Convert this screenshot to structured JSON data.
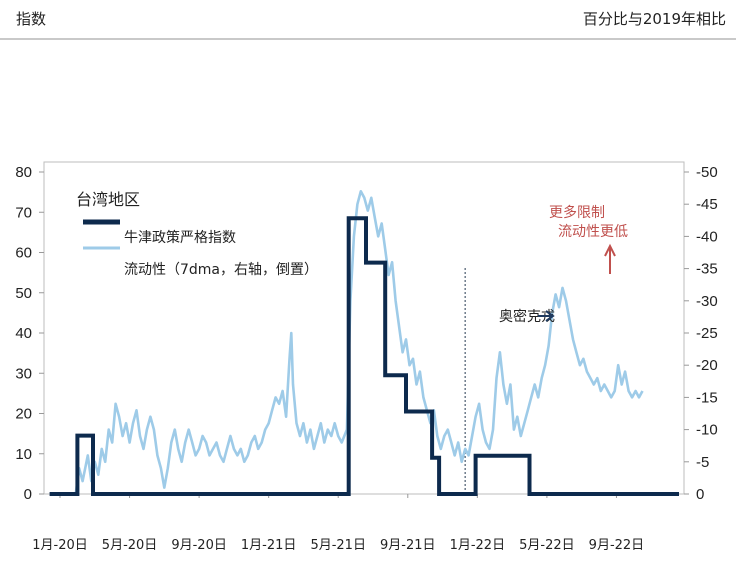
{
  "header": {
    "left_label": "指数",
    "right_label": "百分比与2019年相比"
  },
  "chart_data": {
    "type": "line",
    "title": "台湾地区",
    "x_ticks": [
      "1月-20日",
      "5月-20日",
      "9月-20日",
      "1月-21日",
      "5月-21日",
      "9月-21日",
      "1月-22日",
      "5月-22日",
      "9月-22日"
    ],
    "y_left": {
      "ticks": [
        0,
        10,
        20,
        30,
        40,
        50,
        60,
        70,
        80
      ],
      "ylim": [
        0,
        80
      ]
    },
    "y_right": {
      "ticks": [
        0,
        -5,
        -10,
        -15,
        -20,
        -25,
        -30,
        -35,
        -40,
        -45,
        -50
      ],
      "ylim": [
        0,
        -50
      ],
      "inverted": true
    },
    "x_range": [
      0,
      36
    ],
    "series": [
      {
        "name": "牛津政策严格指数",
        "axis": "left",
        "color": "#0d2a4d",
        "step": true,
        "points": [
          [
            -0.6,
            0
          ],
          [
            1.0,
            0
          ],
          [
            1.0,
            14.5
          ],
          [
            1.9,
            14.5
          ],
          [
            1.9,
            0
          ],
          [
            16.6,
            0
          ],
          [
            16.6,
            68.5
          ],
          [
            17.6,
            68.5
          ],
          [
            17.6,
            57.5
          ],
          [
            18.7,
            57.5
          ],
          [
            18.7,
            29.5
          ],
          [
            19.9,
            29.5
          ],
          [
            19.9,
            20.5
          ],
          [
            21.4,
            20.5
          ],
          [
            21.4,
            9
          ],
          [
            21.8,
            9
          ],
          [
            21.8,
            0
          ],
          [
            23.9,
            0
          ],
          [
            23.9,
            9.5
          ],
          [
            27.0,
            9.5
          ],
          [
            27.0,
            0
          ],
          [
            35.6,
            0
          ]
        ]
      },
      {
        "name": "流动性（7dma，右轴，倒置）",
        "axis": "right",
        "color": "#9ecbe8",
        "points": [
          [
            -0.4,
            0
          ],
          [
            0.9,
            0
          ],
          [
            1.1,
            -4
          ],
          [
            1.3,
            -2
          ],
          [
            1.6,
            -6
          ],
          [
            1.8,
            -2
          ],
          [
            2.0,
            -5
          ],
          [
            2.2,
            -3
          ],
          [
            2.4,
            -7
          ],
          [
            2.6,
            -5
          ],
          [
            2.8,
            -10
          ],
          [
            3.0,
            -8
          ],
          [
            3.2,
            -14
          ],
          [
            3.4,
            -12
          ],
          [
            3.6,
            -9
          ],
          [
            3.8,
            -11
          ],
          [
            4.0,
            -8
          ],
          [
            4.2,
            -11
          ],
          [
            4.4,
            -13
          ],
          [
            4.6,
            -9
          ],
          [
            4.8,
            -7
          ],
          [
            5.0,
            -10
          ],
          [
            5.2,
            -12
          ],
          [
            5.4,
            -10
          ],
          [
            5.6,
            -6
          ],
          [
            5.8,
            -4
          ],
          [
            6.0,
            -1
          ],
          [
            6.2,
            -4
          ],
          [
            6.4,
            -8
          ],
          [
            6.6,
            -10
          ],
          [
            6.8,
            -7
          ],
          [
            7.0,
            -5
          ],
          [
            7.2,
            -8
          ],
          [
            7.4,
            -10
          ],
          [
            7.6,
            -8
          ],
          [
            7.8,
            -6
          ],
          [
            8.0,
            -7
          ],
          [
            8.2,
            -9
          ],
          [
            8.4,
            -8
          ],
          [
            8.6,
            -6
          ],
          [
            8.8,
            -7
          ],
          [
            9.0,
            -8
          ],
          [
            9.2,
            -6
          ],
          [
            9.4,
            -5
          ],
          [
            9.6,
            -7
          ],
          [
            9.8,
            -9
          ],
          [
            10.0,
            -7
          ],
          [
            10.2,
            -6
          ],
          [
            10.4,
            -7
          ],
          [
            10.6,
            -5
          ],
          [
            10.8,
            -6
          ],
          [
            11.0,
            -8
          ],
          [
            11.2,
            -9
          ],
          [
            11.4,
            -7
          ],
          [
            11.6,
            -8
          ],
          [
            11.8,
            -10
          ],
          [
            12.0,
            -11
          ],
          [
            12.2,
            -13
          ],
          [
            12.4,
            -15
          ],
          [
            12.6,
            -14
          ],
          [
            12.8,
            -16
          ],
          [
            13.0,
            -12
          ],
          [
            13.2,
            -21
          ],
          [
            13.3,
            -25
          ],
          [
            13.4,
            -17
          ],
          [
            13.6,
            -11
          ],
          [
            13.8,
            -9
          ],
          [
            14.0,
            -11
          ],
          [
            14.2,
            -8
          ],
          [
            14.4,
            -10
          ],
          [
            14.6,
            -7
          ],
          [
            14.8,
            -9
          ],
          [
            15.0,
            -11
          ],
          [
            15.2,
            -8
          ],
          [
            15.4,
            -10
          ],
          [
            15.6,
            -9
          ],
          [
            15.8,
            -11
          ],
          [
            16.0,
            -9
          ],
          [
            16.2,
            -8
          ],
          [
            16.5,
            -10
          ],
          [
            16.7,
            -30
          ],
          [
            16.9,
            -40
          ],
          [
            17.1,
            -45
          ],
          [
            17.3,
            -47
          ],
          [
            17.5,
            -46
          ],
          [
            17.7,
            -44
          ],
          [
            17.9,
            -46
          ],
          [
            18.1,
            -43
          ],
          [
            18.3,
            -40
          ],
          [
            18.5,
            -42
          ],
          [
            18.7,
            -38
          ],
          [
            18.9,
            -34
          ],
          [
            19.1,
            -36
          ],
          [
            19.3,
            -30
          ],
          [
            19.5,
            -26
          ],
          [
            19.7,
            -22
          ],
          [
            19.9,
            -24
          ],
          [
            20.1,
            -20
          ],
          [
            20.3,
            -21
          ],
          [
            20.5,
            -17
          ],
          [
            20.7,
            -19
          ],
          [
            20.9,
            -15
          ],
          [
            21.1,
            -13
          ],
          [
            21.3,
            -11
          ],
          [
            21.5,
            -13
          ],
          [
            21.7,
            -9
          ],
          [
            21.9,
            -7
          ],
          [
            22.1,
            -9
          ],
          [
            22.3,
            -10
          ],
          [
            22.5,
            -8
          ],
          [
            22.7,
            -6
          ],
          [
            22.9,
            -8
          ],
          [
            23.1,
            -5
          ],
          [
            23.3,
            -7
          ],
          [
            23.5,
            -6
          ],
          [
            23.7,
            -9
          ],
          [
            23.9,
            -12
          ],
          [
            24.1,
            -14
          ],
          [
            24.3,
            -10
          ],
          [
            24.5,
            -8
          ],
          [
            24.7,
            -7
          ],
          [
            24.9,
            -10
          ],
          [
            25.1,
            -18
          ],
          [
            25.3,
            -22
          ],
          [
            25.5,
            -17
          ],
          [
            25.7,
            -14
          ],
          [
            25.9,
            -17
          ],
          [
            26.1,
            -10
          ],
          [
            26.3,
            -12
          ],
          [
            26.5,
            -9
          ],
          [
            26.7,
            -11
          ],
          [
            26.9,
            -13
          ],
          [
            27.1,
            -15
          ],
          [
            27.3,
            -17
          ],
          [
            27.5,
            -15
          ],
          [
            27.7,
            -18
          ],
          [
            27.9,
            -20
          ],
          [
            28.1,
            -23
          ],
          [
            28.3,
            -28
          ],
          [
            28.5,
            -31
          ],
          [
            28.7,
            -29
          ],
          [
            28.9,
            -32
          ],
          [
            29.1,
            -30
          ],
          [
            29.3,
            -27
          ],
          [
            29.5,
            -24
          ],
          [
            29.7,
            -22
          ],
          [
            29.9,
            -20
          ],
          [
            30.1,
            -21
          ],
          [
            30.3,
            -19
          ],
          [
            30.5,
            -18
          ],
          [
            30.7,
            -17
          ],
          [
            30.9,
            -18
          ],
          [
            31.1,
            -16
          ],
          [
            31.3,
            -17
          ],
          [
            31.5,
            -16
          ],
          [
            31.7,
            -15
          ],
          [
            31.9,
            -16
          ],
          [
            32.1,
            -20
          ],
          [
            32.3,
            -17
          ],
          [
            32.5,
            -19
          ],
          [
            32.7,
            -16
          ],
          [
            32.9,
            -15
          ],
          [
            33.1,
            -16
          ],
          [
            33.3,
            -15
          ],
          [
            33.5,
            -16
          ]
        ]
      }
    ],
    "annotations": [
      {
        "text": "奥密克戎",
        "color": "#222222"
      },
      {
        "text_line1": "更多限制",
        "text_line2": "流动性更低",
        "color": "#c0504d"
      }
    ],
    "omicron_x": 23.3,
    "legend_position": "top-left",
    "grid": false
  }
}
